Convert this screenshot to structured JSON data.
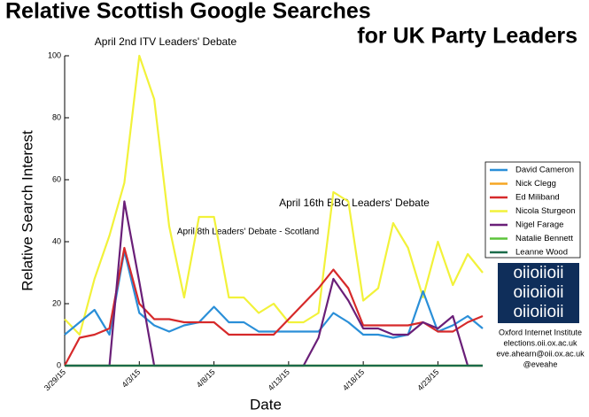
{
  "chart_data": {
    "type": "line",
    "title": "Relative Scottish Google Searches",
    "subtitle": "for UK Party Leaders",
    "x_label": "Date",
    "y_label": "Relative Search Interest",
    "categories": [
      "3/29/15",
      null,
      null,
      null,
      null,
      "4/3/15",
      null,
      null,
      null,
      null,
      "4/8/15",
      null,
      null,
      null,
      null,
      "4/13/15",
      null,
      null,
      null,
      null,
      "4/18/15",
      null,
      null,
      null,
      null,
      "4/23/15",
      null,
      null,
      null
    ],
    "ylim": [
      0,
      100
    ],
    "yticks": [
      0,
      20,
      40,
      60,
      80,
      100
    ],
    "series": [
      {
        "name": "Nicola Sturgeon",
        "color": "#f2f23a",
        "values": [
          15,
          10,
          28,
          42,
          59,
          100,
          86,
          45,
          22,
          48,
          48,
          22,
          22,
          17,
          20,
          14,
          14,
          17,
          56,
          53,
          21,
          25,
          46,
          38,
          22,
          40,
          26,
          36,
          30
        ]
      },
      {
        "name": "David Cameron",
        "color": "#2a8fd8",
        "values": [
          10,
          14,
          18,
          10,
          37,
          17,
          13,
          11,
          13,
          14,
          19,
          14,
          14,
          11,
          11,
          11,
          11,
          11,
          17,
          14,
          10,
          10,
          9,
          10,
          24,
          11,
          13,
          16,
          12
        ]
      },
      {
        "name": "Nick Clegg",
        "color": "#f5a623",
        "values": [
          0,
          0,
          0,
          0,
          0,
          0,
          0,
          0,
          0,
          0,
          0,
          0,
          0,
          0,
          0,
          0,
          0,
          0,
          0,
          0,
          0,
          0,
          0,
          0,
          0,
          0,
          0,
          0,
          0
        ]
      },
      {
        "name": "Ed Miliband",
        "color": "#d6292a",
        "values": [
          0,
          9,
          10,
          12,
          38,
          20,
          15,
          15,
          14,
          14,
          14,
          10,
          10,
          10,
          10,
          15,
          20,
          25,
          31,
          25,
          13,
          13,
          13,
          13,
          14,
          11,
          11,
          14,
          16
        ]
      },
      {
        "name": "Nigel Farage",
        "color": "#6a1f78",
        "values": [
          0,
          0,
          0,
          0,
          53,
          27,
          0,
          0,
          0,
          0,
          0,
          0,
          0,
          0,
          0,
          0,
          0,
          9,
          28,
          21,
          12,
          12,
          10,
          10,
          14,
          12,
          16,
          0,
          0
        ]
      },
      {
        "name": "Natalie Bennett",
        "color": "#5cc43a",
        "values": [
          0,
          0,
          0,
          0,
          0,
          0,
          0,
          0,
          0,
          0,
          0,
          0,
          0,
          0,
          0,
          0,
          0,
          0,
          0,
          0,
          0,
          0,
          0,
          0,
          0,
          0,
          0,
          0,
          0
        ]
      },
      {
        "name": "Leanne Wood",
        "color": "#1a6b4a",
        "values": [
          0,
          0,
          0,
          0,
          0,
          0,
          0,
          0,
          0,
          0,
          0,
          0,
          0,
          0,
          0,
          0,
          0,
          0,
          0,
          0,
          0,
          0,
          0,
          0,
          0,
          0,
          0,
          0,
          0
        ]
      }
    ],
    "legend_order": [
      "David Cameron",
      "Nick Clegg",
      "Ed Miliband",
      "Nicola Sturgeon",
      "Nigel Farage",
      "Natalie Bennett",
      "Leanne Wood"
    ],
    "annotations": [
      "April 2nd ITV Leaders' Debate",
      "April 8th Leaders' Debate - Scotland",
      "April 16th BBC Leaders' Debate"
    ],
    "logo": [
      "oiioiioii",
      "oiioiioii",
      "oiioiioii"
    ],
    "credits": [
      "Oxford Internet Institute",
      "elections.oii.ox.ac.uk",
      "eve.ahearn@oii.ox.ac.uk",
      "@eveahe"
    ]
  }
}
